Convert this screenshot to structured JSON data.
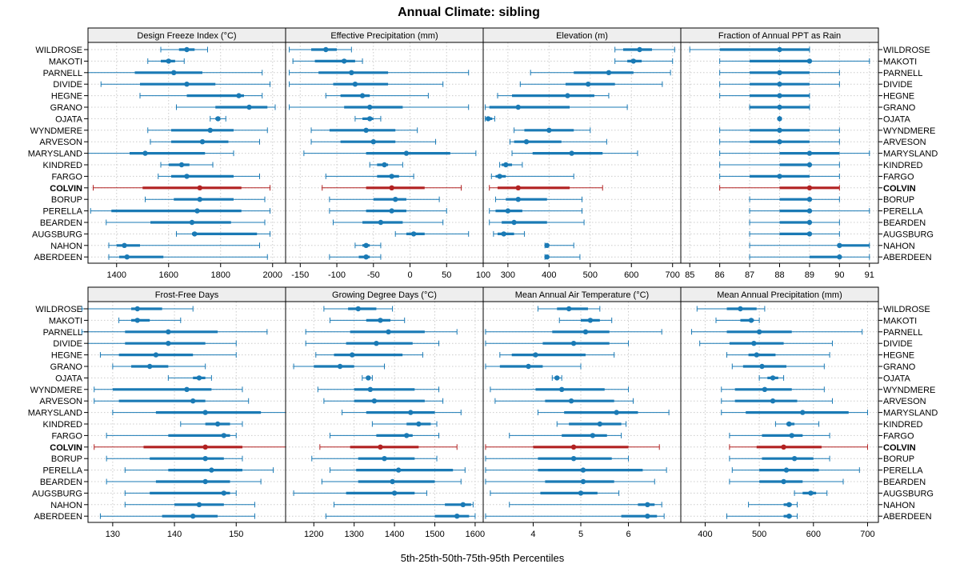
{
  "title": "Annual Climate: sibling",
  "xlabel": "5th-25th-50th-75th-95th Percentiles",
  "highlight": "COLVIN",
  "colors": {
    "normal": "#1a7ab5",
    "highlight": "#b22222",
    "strip_bg": "#eeeeee",
    "grid": "#cccccc"
  },
  "rows": [
    "WILDROSE",
    "MAKOTI",
    "PARNELL",
    "DIVIDE",
    "HEGNE",
    "GRANO",
    "OJATA",
    "WYNDMERE",
    "ARVESON",
    "MARYSLAND",
    "KINDRED",
    "FARGO",
    "COLVIN",
    "BORUP",
    "PERELLA",
    "BEARDEN",
    "AUGSBURG",
    "NAHON",
    "ABERDEEN"
  ],
  "chart_data": [
    {
      "type": "percentile-dot",
      "title": "Design Freeze Index (°C)",
      "xlim": [
        1290,
        2050
      ],
      "ticks": [
        1400,
        1600,
        1800,
        2000
      ],
      "tick_labels": [
        "1400",
        "1600",
        "1800",
        "2000"
      ],
      "values": [
        [
          1570,
          1640,
          1670,
          1700,
          1750
        ],
        [
          1520,
          1570,
          1600,
          1625,
          1660
        ],
        [
          1290,
          1470,
          1620,
          1730,
          1960
        ],
        [
          1340,
          1490,
          1670,
          1780,
          1990
        ],
        [
          1490,
          1670,
          1870,
          1890,
          1960
        ],
        [
          1630,
          1780,
          1910,
          1980,
          2010
        ],
        [
          1760,
          1780,
          1790,
          1795,
          1820
        ],
        [
          1520,
          1610,
          1760,
          1850,
          1980
        ],
        [
          1530,
          1610,
          1730,
          1830,
          1950
        ],
        [
          1290,
          1450,
          1510,
          1740,
          1850
        ],
        [
          1570,
          1600,
          1650,
          1680,
          1770
        ],
        [
          1560,
          1610,
          1670,
          1850,
          1950
        ],
        [
          1310,
          1500,
          1720,
          1880,
          1990
        ],
        [
          1510,
          1620,
          1720,
          1850,
          1970
        ],
        [
          1300,
          1380,
          1710,
          1880,
          1990
        ],
        [
          1360,
          1530,
          1690,
          1840,
          1970
        ],
        [
          1630,
          1690,
          1700,
          1940,
          1990
        ],
        [
          1370,
          1400,
          1430,
          1490,
          1950
        ],
        [
          1370,
          1410,
          1440,
          1580,
          1980
        ]
      ]
    },
    {
      "type": "percentile-dot",
      "title": "Effective Precipitation (mm)",
      "xlim": [
        -170,
        100
      ],
      "ticks": [
        -150,
        -100,
        -50,
        0,
        50,
        100
      ],
      "tick_labels": [
        "-150",
        "-100",
        "-50",
        "0",
        "50",
        "100"
      ],
      "values": [
        [
          -165,
          -135,
          -115,
          -100,
          -80
        ],
        [
          -160,
          -130,
          -90,
          -75,
          -65
        ],
        [
          -165,
          -125,
          -80,
          -30,
          80
        ],
        [
          -165,
          -105,
          -75,
          -30,
          45
        ],
        [
          -115,
          -95,
          -65,
          -55,
          25
        ],
        [
          -165,
          -90,
          -55,
          -10,
          80
        ],
        [
          -75,
          -65,
          -55,
          -50,
          -40
        ],
        [
          -135,
          -110,
          -60,
          -20,
          10
        ],
        [
          -135,
          -95,
          -50,
          -20,
          35
        ],
        [
          -145,
          -60,
          -5,
          55,
          90
        ],
        [
          -55,
          -45,
          -35,
          -30,
          -10
        ],
        [
          -115,
          -45,
          -25,
          -15,
          5
        ],
        [
          -120,
          -60,
          -25,
          20,
          70
        ],
        [
          -110,
          -50,
          -20,
          -5,
          40
        ],
        [
          -110,
          -60,
          -25,
          -5,
          50
        ],
        [
          -105,
          -65,
          -40,
          -10,
          45
        ],
        [
          -20,
          -5,
          5,
          20,
          80
        ],
        [
          -75,
          -65,
          -60,
          -55,
          -40
        ],
        [
          -110,
          -70,
          -60,
          -55,
          -40
        ]
      ]
    },
    {
      "type": "percentile-dot",
      "title": "Elevation (m)",
      "xlim": [
        240,
        720
      ],
      "ticks": [
        300,
        400,
        500,
        600,
        700
      ],
      "tick_labels": [
        "300",
        "400",
        "500",
        "600",
        "700"
      ],
      "values": [
        [
          560,
          580,
          620,
          650,
          705
        ],
        [
          560,
          590,
          605,
          625,
          700
        ],
        [
          355,
          460,
          545,
          605,
          695
        ],
        [
          330,
          440,
          495,
          560,
          675
        ],
        [
          275,
          310,
          445,
          510,
          545
        ],
        [
          245,
          255,
          325,
          450,
          590
        ],
        [
          245,
          248,
          252,
          262,
          268
        ],
        [
          315,
          340,
          400,
          460,
          500
        ],
        [
          305,
          315,
          345,
          430,
          540
        ],
        [
          310,
          360,
          455,
          530,
          615
        ],
        [
          280,
          285,
          295,
          310,
          335
        ],
        [
          260,
          270,
          280,
          295,
          460
        ],
        [
          255,
          275,
          325,
          450,
          530
        ],
        [
          270,
          295,
          325,
          395,
          480
        ],
        [
          255,
          270,
          300,
          335,
          480
        ],
        [
          255,
          285,
          315,
          395,
          485
        ],
        [
          265,
          275,
          290,
          315,
          340
        ],
        [
          390,
          393,
          395,
          398,
          460
        ],
        [
          390,
          393,
          395,
          398,
          475
        ]
      ]
    },
    {
      "type": "percentile-dot",
      "title": "Fraction of Annual PPT as Rain",
      "xlim": [
        84.7,
        91.3
      ],
      "ticks": [
        85,
        86,
        87,
        88,
        89,
        90,
        91
      ],
      "tick_labels": [
        "85",
        "86",
        "87",
        "88",
        "89",
        "90",
        "91"
      ],
      "values": [
        [
          85,
          86,
          88,
          89,
          89
        ],
        [
          86,
          87,
          89,
          89,
          91
        ],
        [
          86,
          87,
          88,
          89,
          90
        ],
        [
          86,
          87,
          88,
          89,
          90
        ],
        [
          86,
          87,
          88,
          89,
          89
        ],
        [
          87,
          87,
          88,
          89,
          89
        ],
        [
          88,
          88,
          88,
          88,
          88
        ],
        [
          86,
          87,
          88,
          89,
          90
        ],
        [
          86,
          87,
          88,
          89,
          90
        ],
        [
          86,
          88,
          89,
          90,
          91
        ],
        [
          86,
          88,
          89,
          89,
          90
        ],
        [
          86,
          87,
          88,
          89,
          90
        ],
        [
          86,
          88,
          89,
          90,
          90
        ],
        [
          87,
          88,
          89,
          89,
          90
        ],
        [
          87,
          88,
          89,
          89,
          91
        ],
        [
          87,
          88,
          89,
          89,
          90
        ],
        [
          87,
          88,
          89,
          89,
          90
        ],
        [
          87,
          90,
          90,
          91,
          91
        ],
        [
          87,
          89,
          90,
          90,
          91
        ]
      ]
    },
    {
      "type": "percentile-dot",
      "title": "Frost-Free Days",
      "xlim": [
        126,
        158
      ],
      "ticks": [
        130,
        140,
        150
      ],
      "tick_labels": [
        "130",
        "140",
        "150"
      ],
      "values": [
        [
          125,
          133,
          134,
          138,
          143
        ],
        [
          131,
          133,
          134,
          136,
          141
        ],
        [
          125,
          132,
          139,
          147,
          155
        ],
        [
          126,
          132,
          139,
          145,
          150
        ],
        [
          128,
          131,
          137,
          143,
          150
        ],
        [
          130,
          133,
          136,
          139,
          145
        ],
        [
          139,
          143,
          144,
          145,
          146
        ],
        [
          127,
          130,
          142,
          146,
          151
        ],
        [
          127,
          131,
          143,
          145,
          152
        ],
        [
          130,
          137,
          145,
          154,
          158
        ],
        [
          141,
          145,
          147,
          149,
          151
        ],
        [
          129,
          139,
          148,
          149,
          150
        ],
        [
          127,
          135,
          145,
          151,
          158
        ],
        [
          129,
          136,
          145,
          148,
          151
        ],
        [
          132,
          139,
          146,
          151,
          156
        ],
        [
          129,
          137,
          145,
          149,
          154
        ],
        [
          132,
          136,
          148,
          149,
          150
        ],
        [
          132,
          140,
          144,
          148,
          153
        ],
        [
          128,
          138,
          143,
          147,
          153
        ]
      ]
    },
    {
      "type": "percentile-dot",
      "title": "Growing Degree Days (°C)",
      "xlim": [
        1130,
        1620
      ],
      "ticks": [
        1200,
        1300,
        1400,
        1500,
        1600
      ],
      "tick_labels": [
        "1200",
        "1300",
        "1400",
        "1500",
        "1600"
      ],
      "values": [
        [
          1225,
          1285,
          1310,
          1355,
          1395
        ],
        [
          1240,
          1330,
          1365,
          1390,
          1425
        ],
        [
          1180,
          1290,
          1385,
          1475,
          1555
        ],
        [
          1180,
          1280,
          1355,
          1445,
          1510
        ],
        [
          1205,
          1250,
          1295,
          1420,
          1470
        ],
        [
          1150,
          1200,
          1265,
          1300,
          1375
        ],
        [
          1320,
          1330,
          1335,
          1340,
          1345
        ],
        [
          1210,
          1300,
          1340,
          1450,
          1510
        ],
        [
          1225,
          1300,
          1350,
          1475,
          1520
        ],
        [
          1270,
          1330,
          1440,
          1500,
          1565
        ],
        [
          1345,
          1430,
          1460,
          1490,
          1505
        ],
        [
          1240,
          1355,
          1430,
          1445,
          1510
        ],
        [
          1215,
          1290,
          1365,
          1460,
          1555
        ],
        [
          1195,
          1310,
          1375,
          1450,
          1505
        ],
        [
          1240,
          1305,
          1410,
          1545,
          1575
        ],
        [
          1220,
          1310,
          1395,
          1500,
          1565
        ],
        [
          1150,
          1280,
          1400,
          1450,
          1480
        ],
        [
          1250,
          1525,
          1570,
          1590,
          1595
        ],
        [
          1230,
          1500,
          1555,
          1585,
          1600
        ]
      ]
    },
    {
      "type": "percentile-dot",
      "title": "Mean Annual Air Temperature (°C)",
      "xlim": [
        2.95,
        7.1
      ],
      "ticks": [
        4,
        5,
        6
      ],
      "tick_labels": [
        "4",
        "5",
        "6"
      ],
      "values": [
        [
          4.1,
          4.5,
          4.75,
          5.15,
          5.4
        ],
        [
          4.55,
          5.0,
          5.2,
          5.4,
          5.65
        ],
        [
          3.0,
          4.4,
          5.1,
          5.6,
          6.7
        ],
        [
          3.0,
          4.2,
          4.85,
          5.6,
          6.0
        ],
        [
          3.3,
          3.55,
          4.05,
          5.1,
          5.7
        ],
        [
          3.0,
          3.3,
          3.9,
          4.2,
          5.0
        ],
        [
          4.4,
          4.45,
          4.5,
          4.55,
          4.6
        ],
        [
          3.1,
          4.05,
          4.6,
          5.5,
          6.0
        ],
        [
          3.2,
          4.25,
          4.8,
          5.7,
          6.1
        ],
        [
          4.1,
          4.65,
          5.75,
          6.2,
          6.85
        ],
        [
          4.5,
          4.75,
          5.4,
          5.85,
          5.95
        ],
        [
          3.5,
          4.6,
          5.25,
          5.55,
          5.85
        ],
        [
          3.0,
          4.0,
          4.85,
          6.0,
          6.65
        ],
        [
          3.0,
          4.1,
          4.85,
          5.65,
          6.0
        ],
        [
          3.0,
          4.1,
          5.05,
          6.3,
          6.8
        ],
        [
          3.0,
          4.25,
          5.05,
          5.7,
          6.55
        ],
        [
          3.1,
          4.15,
          5.0,
          5.35,
          5.8
        ],
        [
          3.5,
          6.2,
          6.4,
          6.55,
          6.7
        ],
        [
          3.0,
          5.85,
          6.4,
          6.6,
          6.75
        ]
      ]
    },
    {
      "type": "percentile-dot",
      "title": "Mean Annual Precipitation (mm)",
      "xlim": [
        355,
        720
      ],
      "ticks": [
        400,
        500,
        600,
        700
      ],
      "tick_labels": [
        "400",
        "500",
        "600",
        "700"
      ],
      "values": [
        [
          385,
          440,
          465,
          495,
          510
        ],
        [
          420,
          465,
          485,
          490,
          500
        ],
        [
          375,
          440,
          500,
          560,
          690
        ],
        [
          390,
          445,
          490,
          545,
          635
        ],
        [
          440,
          480,
          495,
          530,
          630
        ],
        [
          450,
          470,
          505,
          550,
          620
        ],
        [
          500,
          515,
          525,
          535,
          545
        ],
        [
          430,
          455,
          510,
          560,
          620
        ],
        [
          430,
          455,
          525,
          570,
          635
        ],
        [
          430,
          475,
          580,
          665,
          700
        ],
        [
          530,
          550,
          555,
          565,
          610
        ],
        [
          445,
          505,
          560,
          580,
          630
        ],
        [
          445,
          495,
          545,
          615,
          700
        ],
        [
          445,
          505,
          565,
          600,
          630
        ],
        [
          450,
          500,
          550,
          610,
          685
        ],
        [
          445,
          500,
          545,
          580,
          655
        ],
        [
          565,
          580,
          595,
          605,
          625
        ],
        [
          480,
          545,
          555,
          560,
          570
        ],
        [
          440,
          545,
          555,
          560,
          570
        ]
      ]
    }
  ]
}
